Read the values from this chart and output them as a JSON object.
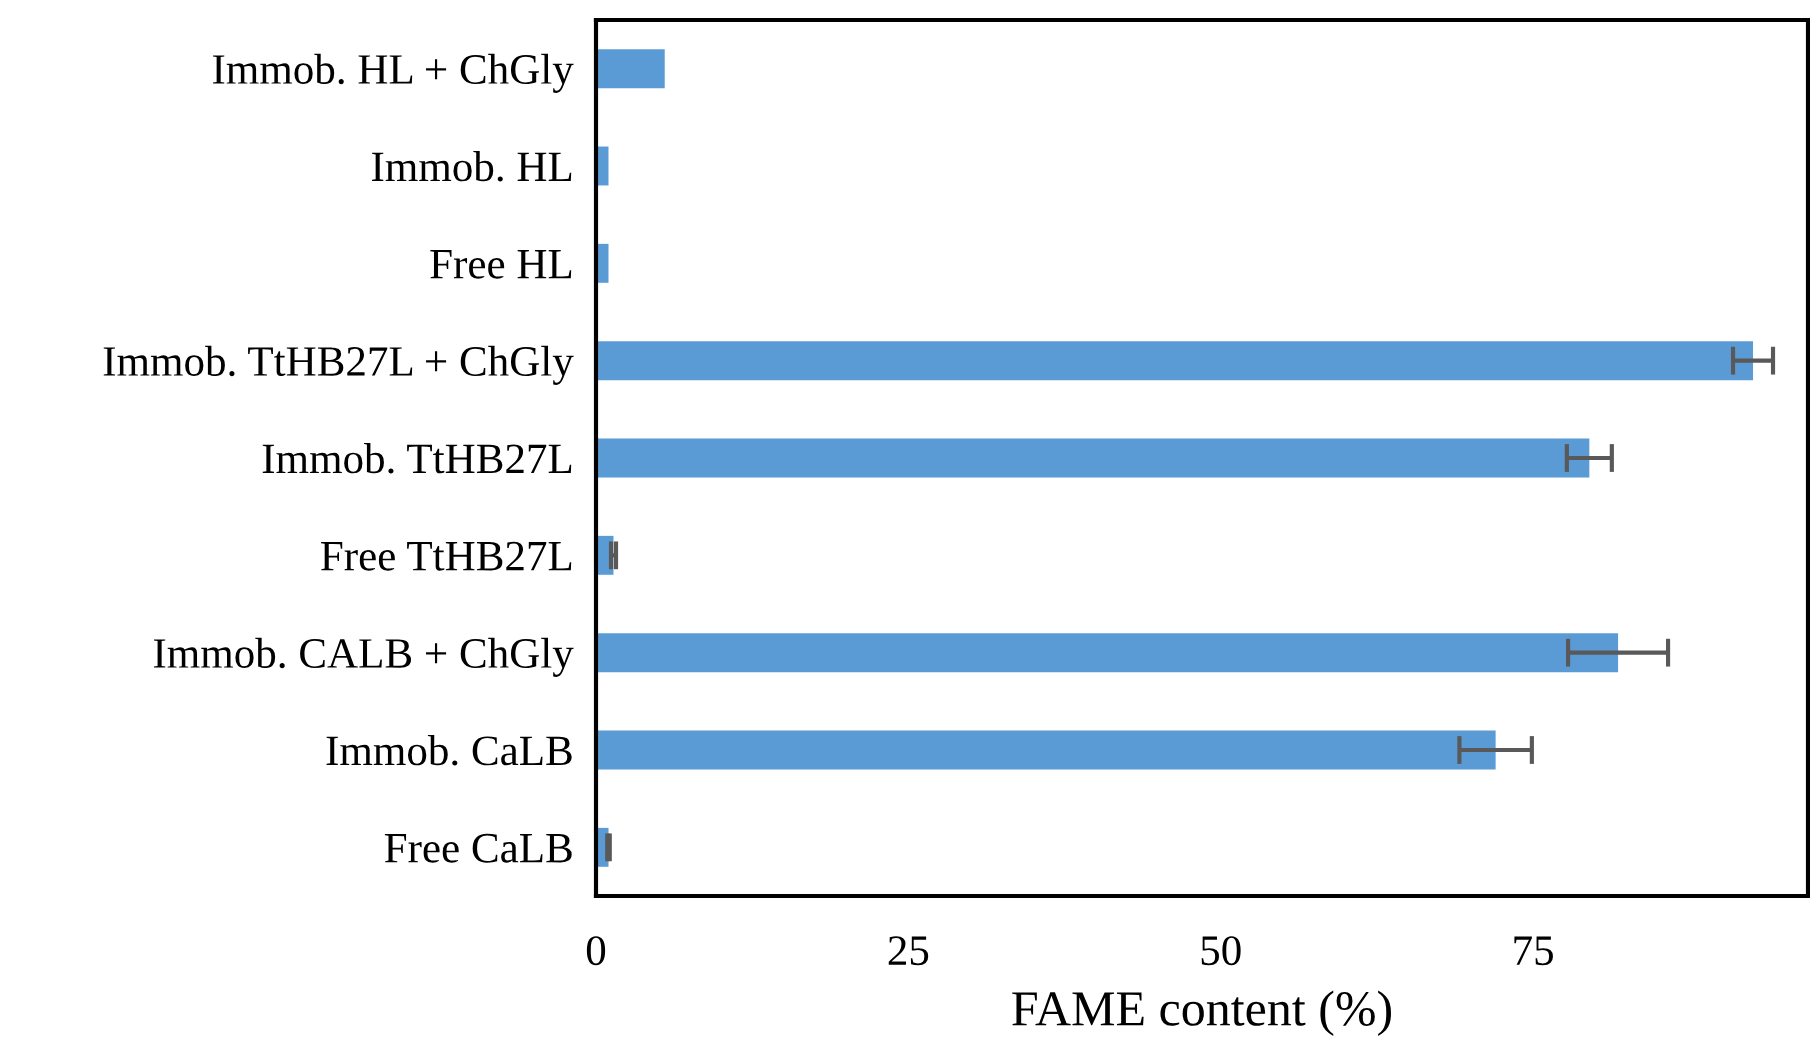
{
  "chart_data": {
    "type": "bar",
    "orientation": "horizontal",
    "xlabel": "FAME content (%)",
    "categories": [
      "Immob. HL + ChGly",
      "Immob. HL",
      "Free HL",
      "Immob. TtHB27L + ChGly",
      "Immob. TtHB27L",
      "Free TtHB27L",
      "Immob. CALB + ChGly",
      "Immob. CaLB",
      "Free CaLB"
    ],
    "values": [
      5.5,
      1.0,
      1.0,
      92.6,
      79.5,
      1.4,
      81.8,
      72.0,
      1.0
    ],
    "errors": [
      null,
      null,
      null,
      1.6,
      1.8,
      0.2,
      4.0,
      2.9,
      0.1
    ],
    "color": "#5b9bd5",
    "xlim": [
      0,
      97
    ],
    "xticks": [
      0,
      25,
      50,
      75
    ],
    "grid": false,
    "legend": false
  }
}
